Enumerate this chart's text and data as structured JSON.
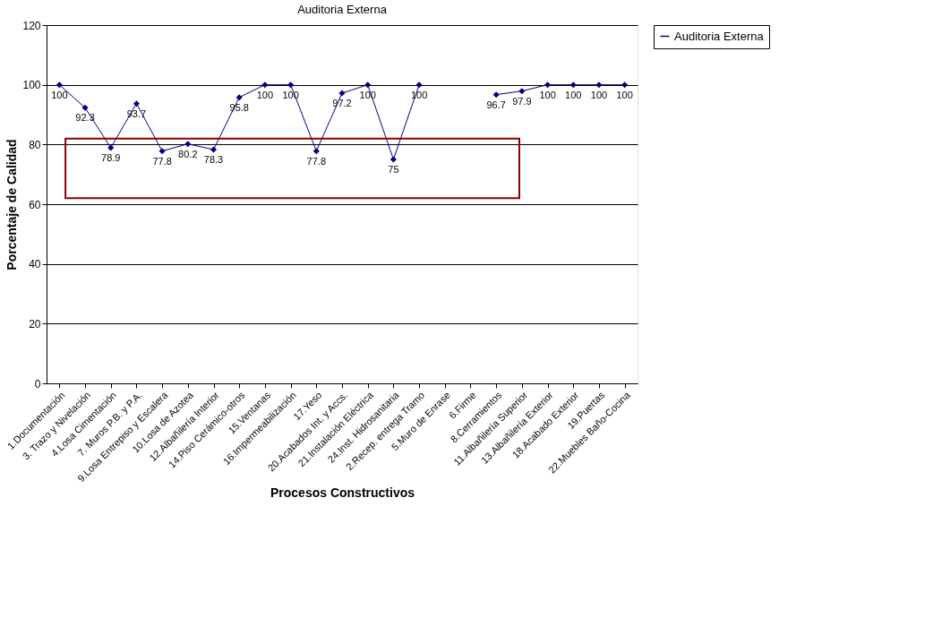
{
  "chart_data": {
    "type": "line",
    "title": "Auditoria Externa",
    "xlabel": "Procesos Constructivos",
    "ylabel": "Porcentaje de Calidad",
    "categories": [
      "1.Documentación",
      "3. Trazo y Nivelación",
      "4.Losa Cimentación",
      "7. Muros P.B. y P.A.",
      "9.Losa Entrepiso y Escalera",
      "10.Losa de Azotea",
      "12.Albañilería Interior",
      "14.Piso Cerámico-otros",
      "15.Ventanas",
      "16.Impermeabilización",
      "17.Yeso",
      "20.Acabados Int. y Accs.",
      "21.Instalación Eléctrica",
      "24.Inst. Hidrosanitaria",
      "2.Recep. entrega Tramo",
      "5.Muro de Enrase",
      "6.Firme",
      "8.Cerramientos",
      "11.Albañilería Superior",
      "13.Albañilería Exterior",
      "18.Acabado Exterior",
      "19.Puertas",
      "22.Muebles Baño-Cocina"
    ],
    "series": [
      {
        "name": "Auditoria Externa",
        "color": "#000080",
        "values": [
          100,
          92.3,
          78.9,
          93.7,
          77.8,
          80.2,
          78.3,
          95.8,
          100,
          100,
          77.8,
          97.2,
          100,
          75,
          100,
          null,
          null,
          96.7,
          97.9,
          100,
          100,
          100,
          100
        ]
      }
    ],
    "ylim": [
      0,
      120
    ],
    "yticks": [
      0,
      20,
      40,
      60,
      80,
      100,
      120
    ],
    "grid": "y",
    "legend": "right",
    "marker": "diamond",
    "line_style": "solid",
    "data_labels": true
  }
}
